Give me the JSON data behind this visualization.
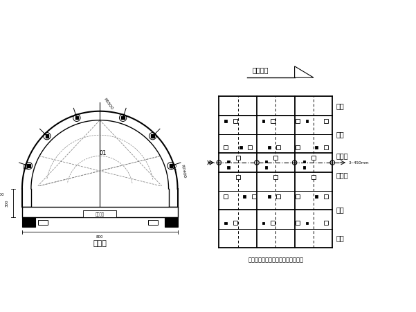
{
  "bg_color": "#ffffff",
  "line_color": "#000000",
  "gray_color": "#888888",
  "title_left": "主视图",
  "title_right": "作业窗、注浆口、振捣器布置示意图",
  "label_positions": [
    [
      "底模",
      0.88
    ],
    [
      "边模",
      0.69
    ],
    [
      "长顶模",
      0.5
    ],
    [
      "短顶模",
      0.38
    ],
    [
      "边模",
      0.22
    ],
    [
      "底模",
      0.1
    ]
  ],
  "arrow_text": "前进方向",
  "dim_label": "3~450mm"
}
